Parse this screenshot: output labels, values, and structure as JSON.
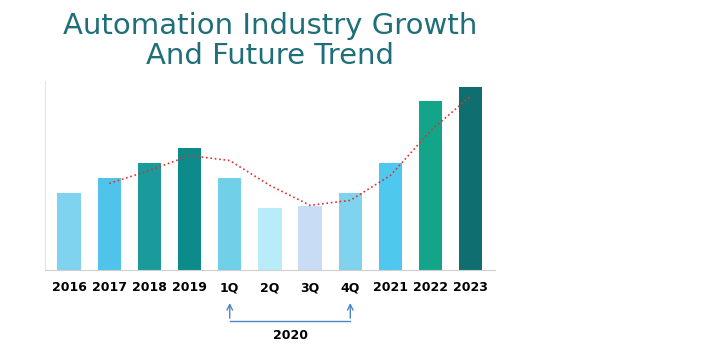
{
  "chart_data": {
    "type": "bar",
    "title": "Automation Industry Growth\nAnd Future Trend",
    "categories": [
      "2016",
      "2017",
      "2018",
      "2019",
      "1Q",
      "2Q",
      "3Q",
      "4Q",
      "2021",
      "2022",
      "2023"
    ],
    "series": [
      {
        "type": "bar",
        "values": [
          77,
          92,
          108,
          123,
          92,
          62,
          64,
          77,
          108,
          170,
          184
        ],
        "colors": [
          "#7fd3ee",
          "#4fc3ea",
          "#1a9a9a",
          "#0d8a8a",
          "#6fd0e8",
          "#b8ecf8",
          "#c8dcf5",
          "#7fd3ee",
          "#4fc8f0",
          "#13a58a",
          "#0f6f70"
        ]
      },
      {
        "type": "line",
        "color": "#e03030",
        "line_style": "dotted",
        "values": [
          null,
          87,
          100,
          115,
          110,
          85,
          65,
          70,
          95,
          140,
          175
        ]
      }
    ],
    "group_labels": [
      {
        "label": "2020",
        "categories": [
          "1Q",
          "2Q",
          "3Q",
          "4Q"
        ]
      }
    ],
    "ylim": [
      0,
      190
    ],
    "yticks": [],
    "tick_labels": "x",
    "grid": false
  }
}
